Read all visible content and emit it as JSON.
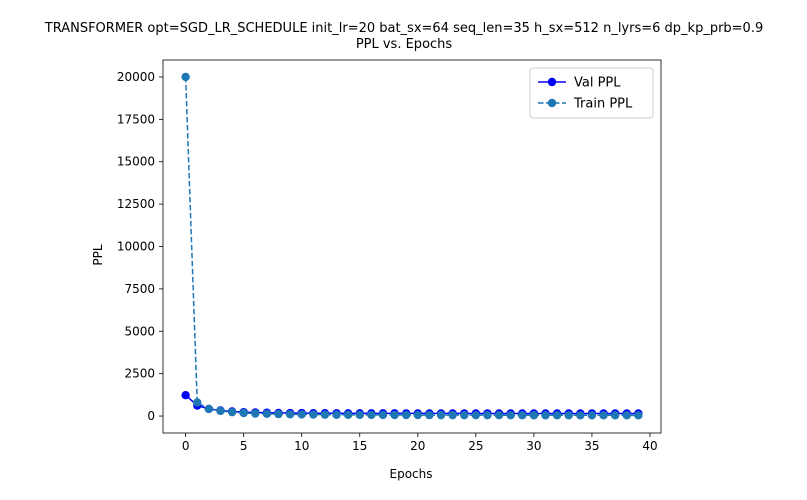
{
  "chart_data": {
    "type": "line",
    "title": "TRANSFORMER opt=SGD_LR_SCHEDULE init_lr=20 bat_sx=64 seq_len=35 h_sx=512 n_lyrs=6 dp_kp_prb=0.9",
    "subtitle": "PPL vs. Epochs",
    "xlabel": "Epochs",
    "ylabel": "PPL",
    "xlim": [
      -1.95,
      40.95
    ],
    "ylim": [
      -1000,
      21000
    ],
    "xticks": [
      0,
      5,
      10,
      15,
      20,
      25,
      30,
      35,
      40
    ],
    "yticks": [
      0,
      2500,
      5000,
      7500,
      10000,
      12500,
      15000,
      17500,
      20000
    ],
    "grid": false,
    "legend_position": "top-right",
    "x": [
      0,
      1,
      2,
      3,
      4,
      5,
      6,
      7,
      8,
      9,
      10,
      11,
      12,
      13,
      14,
      15,
      16,
      17,
      18,
      19,
      20,
      21,
      22,
      23,
      24,
      25,
      26,
      27,
      28,
      29,
      30,
      31,
      32,
      33,
      34,
      35,
      36,
      37,
      38,
      39
    ],
    "series": [
      {
        "name": "Val PPL",
        "color": "#0000ff",
        "line_style": "solid",
        "marker": "circle",
        "values": [
          1230,
          620,
          420,
          330,
          270,
          230,
          210,
          195,
          185,
          178,
          172,
          168,
          165,
          163,
          161,
          160,
          159,
          158,
          157,
          156,
          155,
          155,
          154,
          154,
          153,
          153,
          153,
          152,
          152,
          152,
          152,
          151,
          151,
          151,
          151,
          151,
          151,
          150,
          150,
          150
        ]
      },
      {
        "name": "Train PPL",
        "color": "#1f77b4",
        "line_style": "dashed",
        "marker": "circle",
        "values": [
          20000,
          800,
          420,
          300,
          230,
          180,
          150,
          130,
          115,
          105,
          95,
          88,
          82,
          77,
          73,
          70,
          67,
          64,
          62,
          60,
          58,
          56,
          55,
          54,
          53,
          52,
          51,
          50,
          49,
          48,
          47,
          47,
          46,
          46,
          45,
          45,
          44,
          44,
          43,
          43
        ]
      }
    ]
  }
}
